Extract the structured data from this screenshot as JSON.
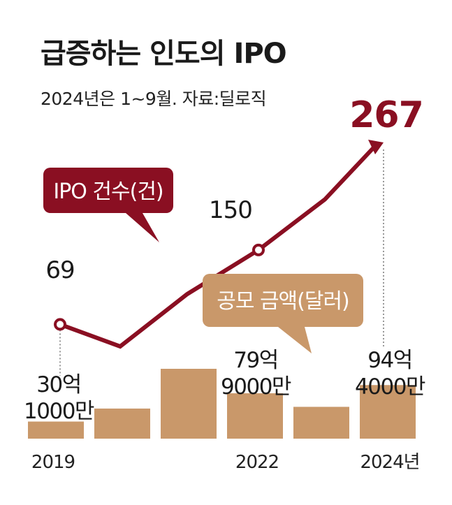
{
  "title": "급증하는 인도의 IPO",
  "subtitle": "2024년은 1~9월. 자료:딜로직",
  "colors": {
    "line": "#8a0f22",
    "bar": "#c9986a",
    "text": "#1a1a1a"
  },
  "chart_data": [
    {
      "type": "line",
      "series": [
        {
          "name": "IPO 건수(건)",
          "values": [
            69,
            45,
            102,
            150,
            205,
            267
          ]
        }
      ],
      "x": [
        "2019",
        "2020",
        "2021",
        "2022",
        "2023",
        "2024년"
      ],
      "point_labels": {
        "0": "69",
        "3": "150",
        "5": "267"
      }
    },
    {
      "type": "bar",
      "series": [
        {
          "name": "공모 금액(달러)",
          "values": [
            3010000000,
            5300000000,
            12300000000,
            7990000000,
            5600000000,
            9440000000
          ]
        }
      ],
      "categories": [
        "2019",
        "2020",
        "2021",
        "2022",
        "2023",
        "2024년"
      ],
      "value_labels": {
        "0": [
          "30억",
          "1000만"
        ],
        "3": [
          "79억",
          "9000만"
        ],
        "5": [
          "94억",
          "4000만"
        ]
      },
      "x_tick_labels": {
        "0": "2019",
        "3": "2022",
        "5": "2024년"
      }
    }
  ]
}
